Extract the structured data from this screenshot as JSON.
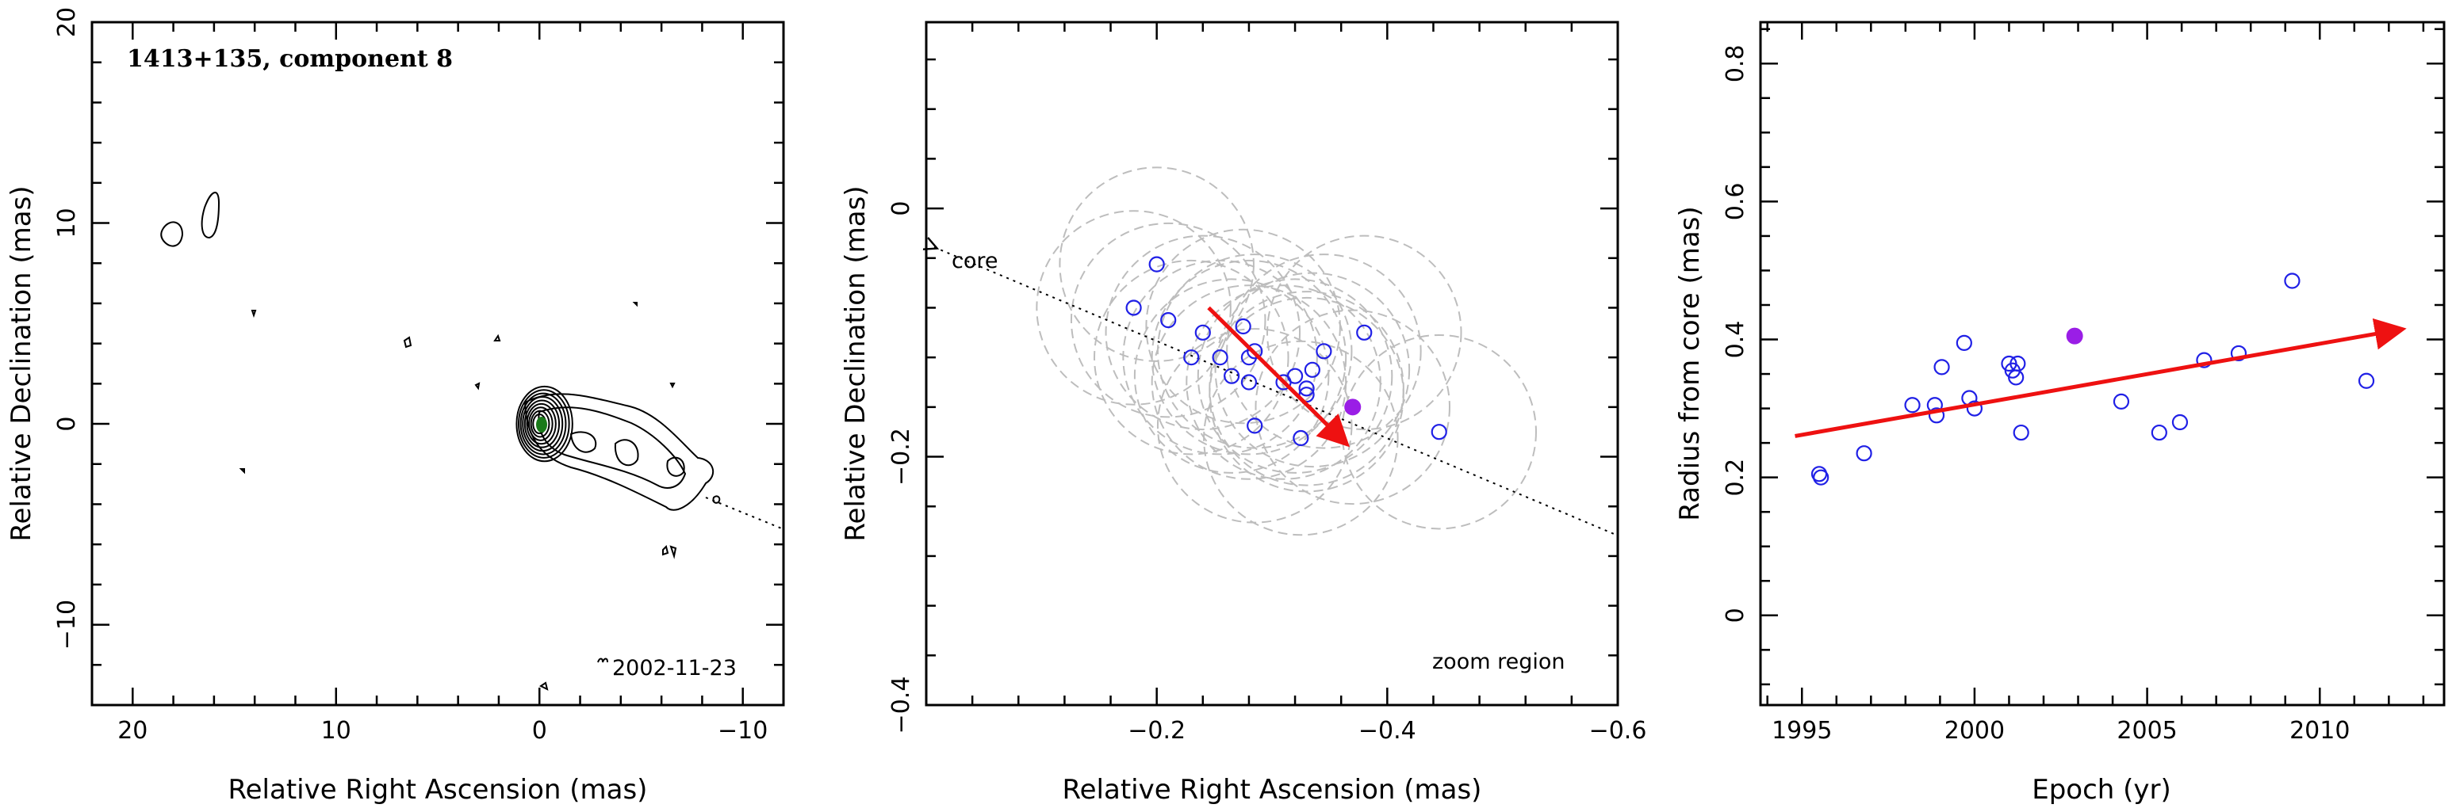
{
  "chart_data": [
    {
      "type": "contour",
      "title": "1413+135, component 8",
      "xlabel": "Relative Right Ascension (mas)",
      "ylabel": "Relative Declination (mas)",
      "xlim": [
        22,
        -12
      ],
      "ylim": [
        -14,
        20
      ],
      "xticks": [
        20,
        10,
        0,
        -10
      ],
      "yticks": [
        -10,
        0,
        10,
        20
      ],
      "date_label": "2002-11-23",
      "features": [
        {
          "name": "core contours",
          "x": 0,
          "y": 0
        },
        {
          "name": "jet",
          "x_range": [
            0,
            -9
          ],
          "y_range": [
            0,
            -4
          ]
        },
        {
          "name": "blob",
          "x": 17,
          "y": 10
        }
      ]
    },
    {
      "type": "scatter",
      "xlabel": "Relative Right Ascension (mas)",
      "ylabel": "Relative Declination (mas)",
      "xlim": [
        0,
        -0.6
      ],
      "ylim": [
        -0.4,
        0.15
      ],
      "xticks": [
        -0.2,
        -0.4,
        -0.6
      ],
      "yticks": [
        -0.4,
        -0.2,
        0
      ],
      "core_label": "core",
      "zoom_label": "zoom region",
      "points": [
        {
          "x": -0.18,
          "y": -0.08
        },
        {
          "x": -0.2,
          "y": -0.045
        },
        {
          "x": -0.21,
          "y": -0.09
        },
        {
          "x": -0.23,
          "y": -0.12
        },
        {
          "x": -0.24,
          "y": -0.1
        },
        {
          "x": -0.255,
          "y": -0.12
        },
        {
          "x": -0.265,
          "y": -0.135
        },
        {
          "x": -0.275,
          "y": -0.095
        },
        {
          "x": -0.28,
          "y": -0.14
        },
        {
          "x": -0.28,
          "y": -0.12
        },
        {
          "x": -0.285,
          "y": -0.115
        },
        {
          "x": -0.285,
          "y": -0.175
        },
        {
          "x": -0.31,
          "y": -0.14
        },
        {
          "x": -0.32,
          "y": -0.135
        },
        {
          "x": -0.33,
          "y": -0.145
        },
        {
          "x": -0.33,
          "y": -0.15
        },
        {
          "x": -0.335,
          "y": -0.13
        },
        {
          "x": -0.345,
          "y": -0.115
        },
        {
          "x": -0.325,
          "y": -0.185
        },
        {
          "x": -0.38,
          "y": -0.1
        },
        {
          "x": -0.445,
          "y": -0.18
        }
      ],
      "highlight": {
        "x": -0.37,
        "y": -0.16
      },
      "arrow": {
        "from": [
          -0.245,
          -0.08
        ],
        "to": [
          -0.365,
          -0.19
        ]
      }
    },
    {
      "type": "scatter",
      "xlabel": "Epoch (yr)",
      "ylabel": "Radius from core (mas)",
      "xlim": [
        1993.8,
        2013.6
      ],
      "ylim": [
        -0.13,
        0.86
      ],
      "xticks": [
        1995,
        2000,
        2005,
        2010
      ],
      "yticks": [
        0,
        0.2,
        0.4,
        0.6,
        0.8
      ],
      "points": [
        {
          "x": 1995.5,
          "y": 0.205
        },
        {
          "x": 1995.55,
          "y": 0.2
        },
        {
          "x": 1996.8,
          "y": 0.235
        },
        {
          "x": 1998.2,
          "y": 0.305
        },
        {
          "x": 1998.85,
          "y": 0.305
        },
        {
          "x": 1998.9,
          "y": 0.29
        },
        {
          "x": 1999.05,
          "y": 0.36
        },
        {
          "x": 1999.7,
          "y": 0.395
        },
        {
          "x": 1999.85,
          "y": 0.315
        },
        {
          "x": 2000.0,
          "y": 0.3
        },
        {
          "x": 2001.0,
          "y": 0.365
        },
        {
          "x": 2001.1,
          "y": 0.355
        },
        {
          "x": 2001.2,
          "y": 0.345
        },
        {
          "x": 2001.25,
          "y": 0.365
        },
        {
          "x": 2001.35,
          "y": 0.265
        },
        {
          "x": 2004.25,
          "y": 0.31
        },
        {
          "x": 2005.35,
          "y": 0.265
        },
        {
          "x": 2005.95,
          "y": 0.28
        },
        {
          "x": 2006.65,
          "y": 0.37
        },
        {
          "x": 2007.65,
          "y": 0.38
        },
        {
          "x": 2009.2,
          "y": 0.485
        },
        {
          "x": 2011.35,
          "y": 0.34
        }
      ],
      "highlight": {
        "x": 2002.9,
        "y": 0.405
      },
      "arrow": {
        "from": [
          1994.8,
          0.26
        ],
        "to": [
          2012.4,
          0.415
        ]
      }
    }
  ],
  "colors": {
    "points": "#2020e6",
    "highlight": "#9a1ee6",
    "arrow": "#ee1111",
    "circles": "#bdbdbd"
  }
}
